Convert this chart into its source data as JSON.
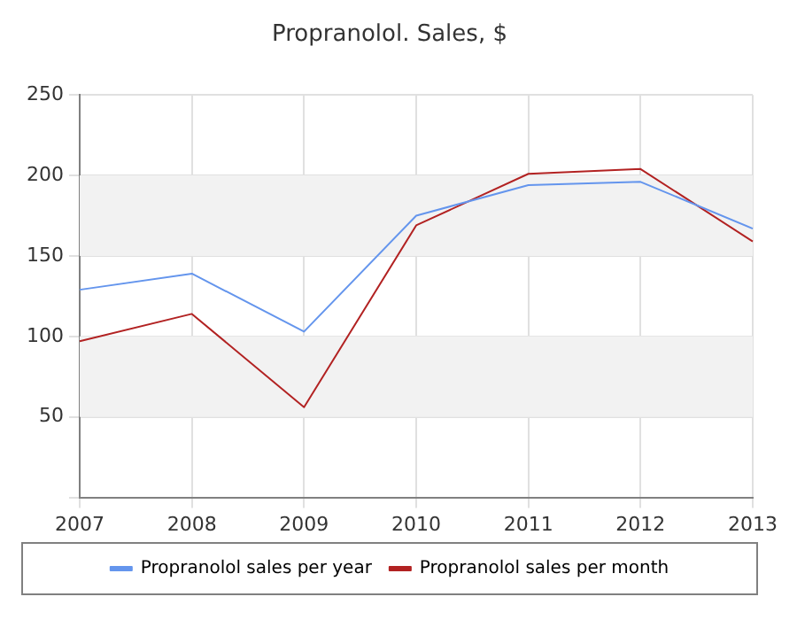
{
  "chart_data": {
    "type": "line",
    "title": "Propranolol. Sales, $",
    "categories": [
      "2007",
      "2008",
      "2009",
      "2010",
      "2011",
      "2012",
      "2013"
    ],
    "series": [
      {
        "name": "Propranolol sales per year",
        "color": "#6495ed",
        "values": [
          129,
          139,
          103,
          175,
          194,
          196,
          167
        ]
      },
      {
        "name": "Propranolol sales per month",
        "color": "#b22222",
        "values": [
          97,
          114,
          56,
          169,
          201,
          204,
          159
        ]
      }
    ],
    "ylim": [
      0,
      250
    ],
    "yticks": [
      {
        "value": 0,
        "label": null
      },
      50,
      100,
      150,
      200,
      250
    ],
    "bands": [
      {
        "axis": "y",
        "from": 50,
        "to": 100,
        "color": "#f2f2f2"
      },
      {
        "axis": "y",
        "from": 150,
        "to": 200,
        "color": "#f2f2f2"
      }
    ],
    "grid": true,
    "legend": "bottom",
    "marker": "none",
    "line_style": "solid"
  }
}
